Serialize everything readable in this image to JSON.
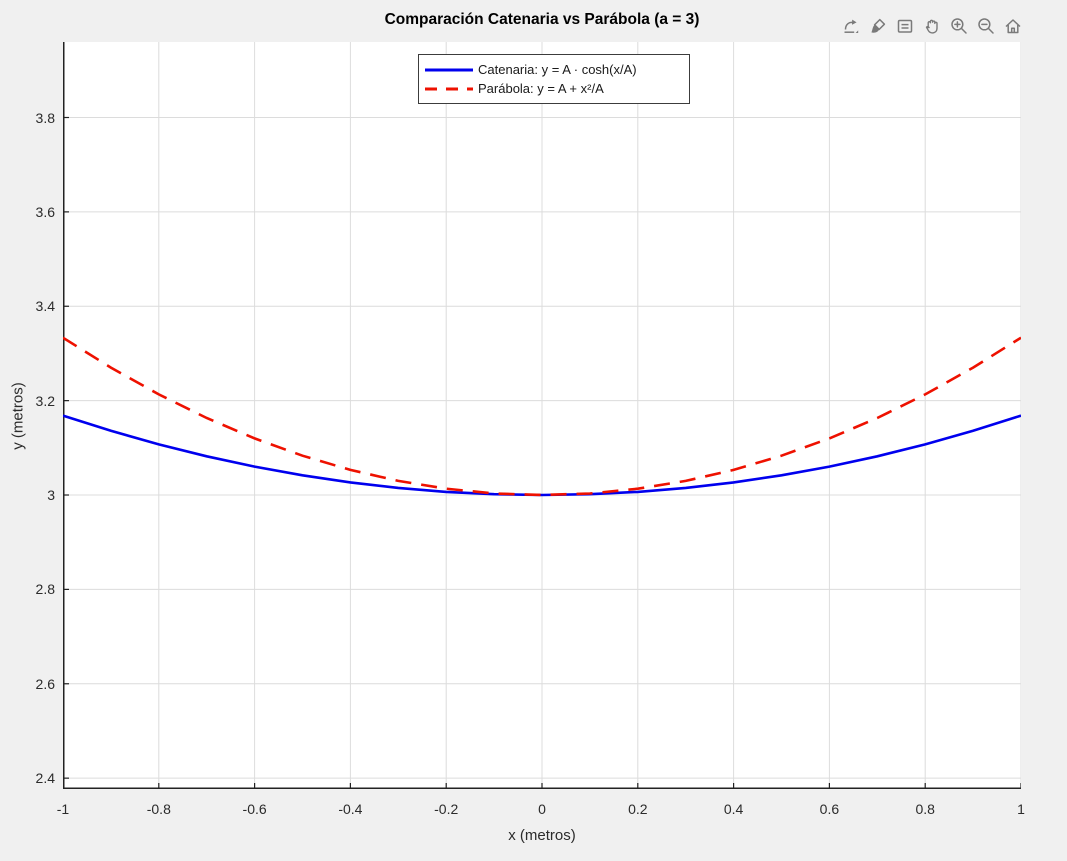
{
  "figure": {
    "title": "Comparación Catenaria vs Parábola (a = 3)",
    "background_color": "#F0F0F0",
    "plot_background_color": "#FFFFFF"
  },
  "toolbar": {
    "icons": [
      "export",
      "brush",
      "datatips",
      "pan",
      "zoom-in",
      "zoom-out",
      "restore-view"
    ]
  },
  "chart_data": {
    "type": "line",
    "title": "Comparación Catenaria vs Parábola (a = 3)",
    "xlabel": "x (metros)",
    "ylabel": "y (metros)",
    "xlim": [
      -1,
      1
    ],
    "ylim": [
      2.377,
      3.96
    ],
    "x_ticks": [
      -1,
      -0.8,
      -0.6,
      -0.4,
      -0.2,
      0,
      0.2,
      0.4,
      0.6,
      0.8,
      1
    ],
    "x_tick_labels": [
      "-1",
      "-0.8",
      "-0.6",
      "-0.4",
      "-0.2",
      "0",
      "0.2",
      "0.4",
      "0.6",
      "0.8",
      "1"
    ],
    "y_ticks": [
      2.4,
      2.6,
      2.8,
      3,
      3.2,
      3.4,
      3.6,
      3.8
    ],
    "y_tick_labels": [
      "2.4",
      "2.6",
      "2.8",
      "3",
      "3.2",
      "3.4",
      "3.6",
      "3.8"
    ],
    "grid": true,
    "grid_color": "#DCDCDC",
    "axis_color": "#222222",
    "legend_position": "top-center",
    "x": [
      -1,
      -0.9,
      -0.8,
      -0.7,
      -0.6,
      -0.5,
      -0.4,
      -0.3,
      -0.2,
      -0.1,
      0,
      0.1,
      0.2,
      0.3,
      0.4,
      0.5,
      0.6,
      0.7,
      0.8,
      0.9,
      1
    ],
    "series": [
      {
        "id": "catenaria-curve",
        "name": "Catenaria: y = A · cosh(x/A)",
        "color": "#0000EE",
        "style": "solid",
        "width": 2.6,
        "dash": "",
        "values": [
          3.1682,
          3.136,
          3.1073,
          3.082,
          3.0602,
          3.0417,
          3.0267,
          3.015,
          3.0067,
          3.0017,
          3.0,
          3.0017,
          3.0067,
          3.015,
          3.0267,
          3.0417,
          3.0602,
          3.082,
          3.1073,
          3.136,
          3.1682
        ]
      },
      {
        "id": "parabola-curve",
        "name": "Parábola: y = A + x²/A",
        "color": "#EE1100",
        "style": "dashed",
        "width": 2.6,
        "dash": "16 10",
        "values": [
          3.3333,
          3.27,
          3.2133,
          3.1633,
          3.12,
          3.0833,
          3.0533,
          3.03,
          3.0133,
          3.0033,
          3.0,
          3.0033,
          3.0133,
          3.03,
          3.0533,
          3.0833,
          3.12,
          3.1633,
          3.2133,
          3.27,
          3.3333
        ]
      }
    ]
  }
}
